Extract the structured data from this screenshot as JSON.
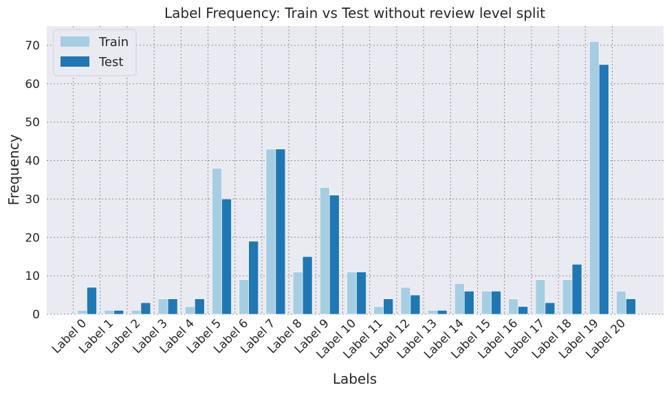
{
  "chart_data": {
    "type": "bar",
    "title": "Label Frequency: Train vs Test without review level split",
    "xlabel": "Labels",
    "ylabel": "Frequency",
    "ylim": [
      0,
      75
    ],
    "yticks": [
      0,
      10,
      20,
      30,
      40,
      50,
      60,
      70
    ],
    "grid": true,
    "legend_position": "top-left",
    "categories": [
      "Label 0",
      "Label 1",
      "Label 2",
      "Label 3",
      "Label 4",
      "Label 5",
      "Label 6",
      "Label 7",
      "Label 8",
      "Label 9",
      "Label 10",
      "Label 11",
      "Label 12",
      "Label 13",
      "Label 14",
      "Label 15",
      "Label 16",
      "Label 17",
      "Label 18",
      "Label 19",
      "Label 20"
    ],
    "series": [
      {
        "name": "Train",
        "color": "#a6cee3",
        "values": [
          1,
          1,
          1,
          4,
          2,
          38,
          9,
          43,
          11,
          33,
          11,
          2,
          7,
          1,
          8,
          6,
          4,
          9,
          9,
          71,
          6
        ]
      },
      {
        "name": "Test",
        "color": "#1f78b4",
        "values": [
          7,
          1,
          3,
          4,
          4,
          30,
          19,
          43,
          15,
          31,
          11,
          4,
          5,
          1,
          6,
          6,
          2,
          3,
          13,
          65,
          4
        ]
      }
    ]
  },
  "colors": {
    "plot_background": "#eaeaf2",
    "grid": "#8c8c8c"
  }
}
